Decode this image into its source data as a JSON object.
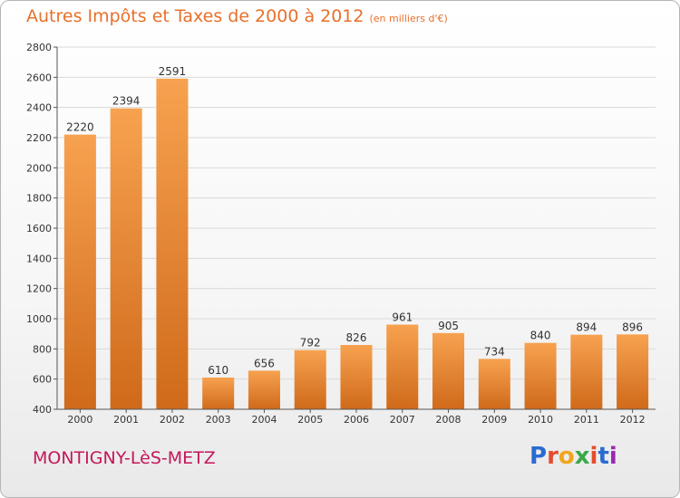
{
  "header": {
    "title": "Autres Impôts et Taxes de 2000 à 2012",
    "subtitle": "(en milliers d'€)"
  },
  "footer": {
    "city": "MONTIGNY-LèS-METZ",
    "logo_letters": [
      "P",
      "r",
      "o",
      "x",
      "i",
      "t",
      "i"
    ],
    "logo_colors": [
      "#2a6bd1",
      "#e54c2e",
      "#f2a51a",
      "#38a845",
      "#e54c2e",
      "#2a6bd1",
      "#9c27b0"
    ]
  },
  "colors": {
    "bar_top": "#f7a250",
    "bar_bottom": "#cf6a1a",
    "grid": "#d9d9d9",
    "axis": "#555555"
  },
  "chart_data": {
    "type": "bar",
    "categories": [
      "2000",
      "2001",
      "2002",
      "2003",
      "2004",
      "2005",
      "2006",
      "2007",
      "2008",
      "2009",
      "2010",
      "2011",
      "2012"
    ],
    "values": [
      2220,
      2394,
      2591,
      610,
      656,
      792,
      826,
      961,
      905,
      734,
      840,
      894,
      896
    ],
    "ylim": [
      400,
      2800
    ],
    "yticks": [
      400,
      600,
      800,
      1000,
      1200,
      1400,
      1600,
      1800,
      2000,
      2200,
      2400,
      2600,
      2800
    ],
    "grid": true
  }
}
